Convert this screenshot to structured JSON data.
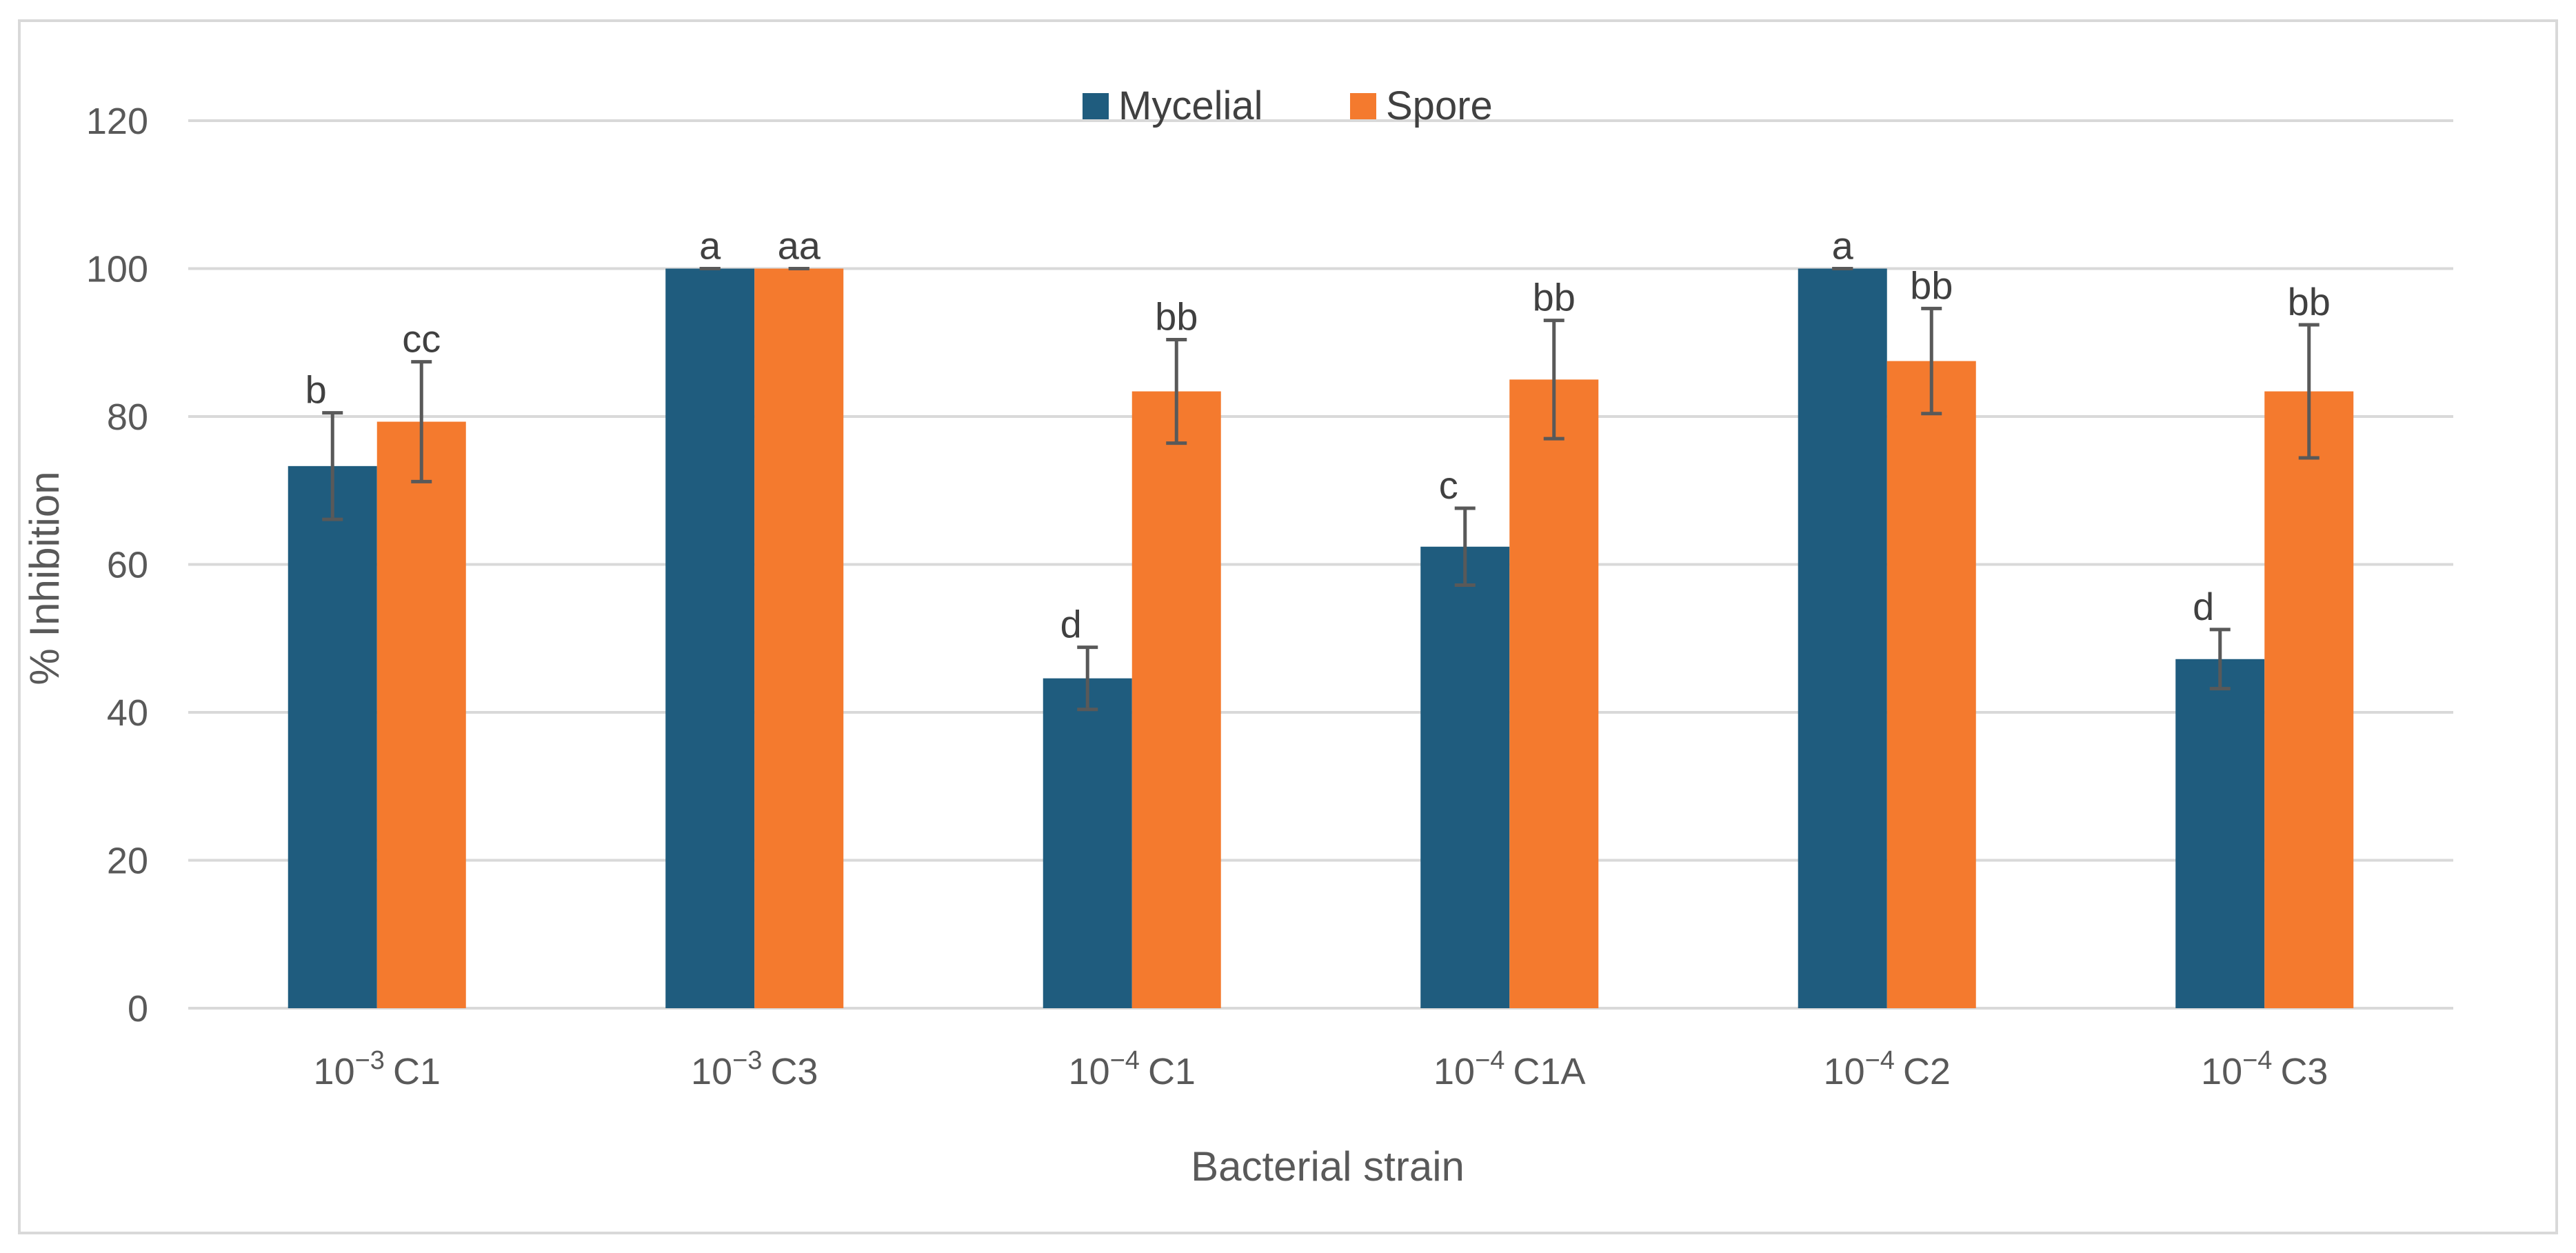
{
  "chart_data": {
    "type": "bar",
    "title": "",
    "xlabel": "Bacterial strain",
    "ylabel": "% Inhibition",
    "ylim": [
      0,
      120
    ],
    "yticks": [
      0,
      20,
      40,
      60,
      80,
      100,
      120
    ],
    "grid": true,
    "legend_position": "top-center",
    "categories": [
      {
        "base": "10",
        "exp": "−3",
        "suffix": "C1"
      },
      {
        "base": "10",
        "exp": "−3",
        "suffix": "C3"
      },
      {
        "base": "10",
        "exp": "−4",
        "suffix": "C1"
      },
      {
        "base": "10",
        "exp": "−4",
        "suffix": "C1A"
      },
      {
        "base": "10",
        "exp": "−4",
        "suffix": "C2"
      },
      {
        "base": "10",
        "exp": "−4",
        "suffix": "C3"
      }
    ],
    "series": [
      {
        "name": "Mycelial",
        "color": "#1f5c7e",
        "values": [
          73.3,
          100,
          44.6,
          62.4,
          100,
          47.2
        ],
        "errors": [
          7.2,
          0,
          4.2,
          5.2,
          0,
          4.0
        ],
        "labels": [
          "b",
          "a",
          "d",
          "c",
          "a",
          "d"
        ]
      },
      {
        "name": "Spore",
        "color": "#f47a2e",
        "values": [
          79.3,
          100,
          83.4,
          85.0,
          87.5,
          83.4
        ],
        "errors": [
          8.1,
          0,
          7.0,
          8.0,
          7.1,
          9.0
        ],
        "labels": [
          "cc",
          "aa",
          "bb",
          "bb",
          "bb",
          "bb"
        ]
      }
    ],
    "error_bar_color": "#595959",
    "grid_color": "#d9d9d9"
  }
}
